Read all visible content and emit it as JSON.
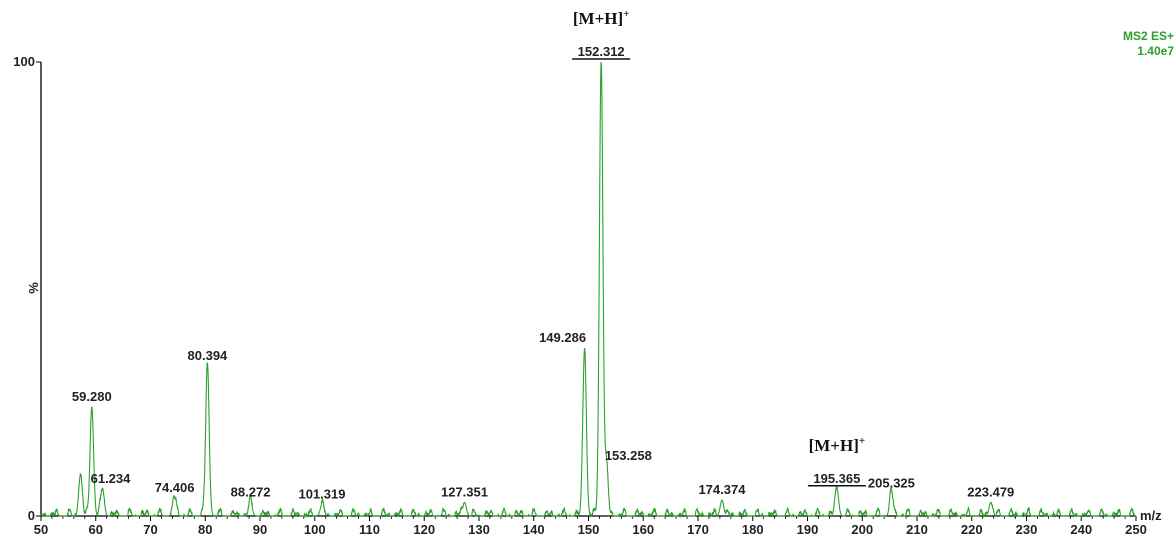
{
  "chart_data": {
    "type": "line",
    "title": "",
    "xlabel": "m/z",
    "ylabel": "%",
    "xlim": [
      50,
      250
    ],
    "ylim": [
      0,
      100
    ],
    "x_ticks": [
      50,
      60,
      70,
      80,
      90,
      100,
      110,
      120,
      130,
      140,
      150,
      160,
      170,
      180,
      190,
      200,
      210,
      220,
      230,
      240,
      250
    ],
    "y_ticks": [
      0,
      100
    ],
    "grid": false,
    "instrument_label": "MS2 ES+",
    "intensity_label": "1.40e7",
    "line_color": "#2ca02c",
    "series": [
      {
        "peaks": [
          {
            "mz": 57.2,
            "intensity": 9
          },
          {
            "mz": 59.28,
            "intensity": 24,
            "label": "59.280"
          },
          {
            "mz": 61.234,
            "intensity": 6,
            "label": "61.234"
          },
          {
            "mz": 74.406,
            "intensity": 4,
            "label": "74.406"
          },
          {
            "mz": 80.394,
            "intensity": 33,
            "label": "80.394"
          },
          {
            "mz": 88.272,
            "intensity": 3,
            "label": "88.272"
          },
          {
            "mz": 101.319,
            "intensity": 2.5,
            "label": "101.319"
          },
          {
            "mz": 127.351,
            "intensity": 3,
            "label": "127.351"
          },
          {
            "mz": 149.286,
            "intensity": 37,
            "label": "149.286"
          },
          {
            "mz": 152.312,
            "intensity": 100,
            "label": "152.312",
            "underline": true
          },
          {
            "mz": 153.258,
            "intensity": 11,
            "label": "153.258"
          },
          {
            "mz": 174.374,
            "intensity": 3.5,
            "label": "174.374"
          },
          {
            "mz": 195.365,
            "intensity": 6,
            "label": "195.365",
            "underline": true
          },
          {
            "mz": 205.325,
            "intensity": 5,
            "label": "205.325"
          },
          {
            "mz": 223.479,
            "intensity": 3,
            "label": "223.479"
          }
        ]
      }
    ],
    "annotations": [
      {
        "text": "[M+H]",
        "sup": "+",
        "near_mz": 152.312
      },
      {
        "text": "[M+H]",
        "sup": "+",
        "near_mz": 195.365
      }
    ]
  }
}
